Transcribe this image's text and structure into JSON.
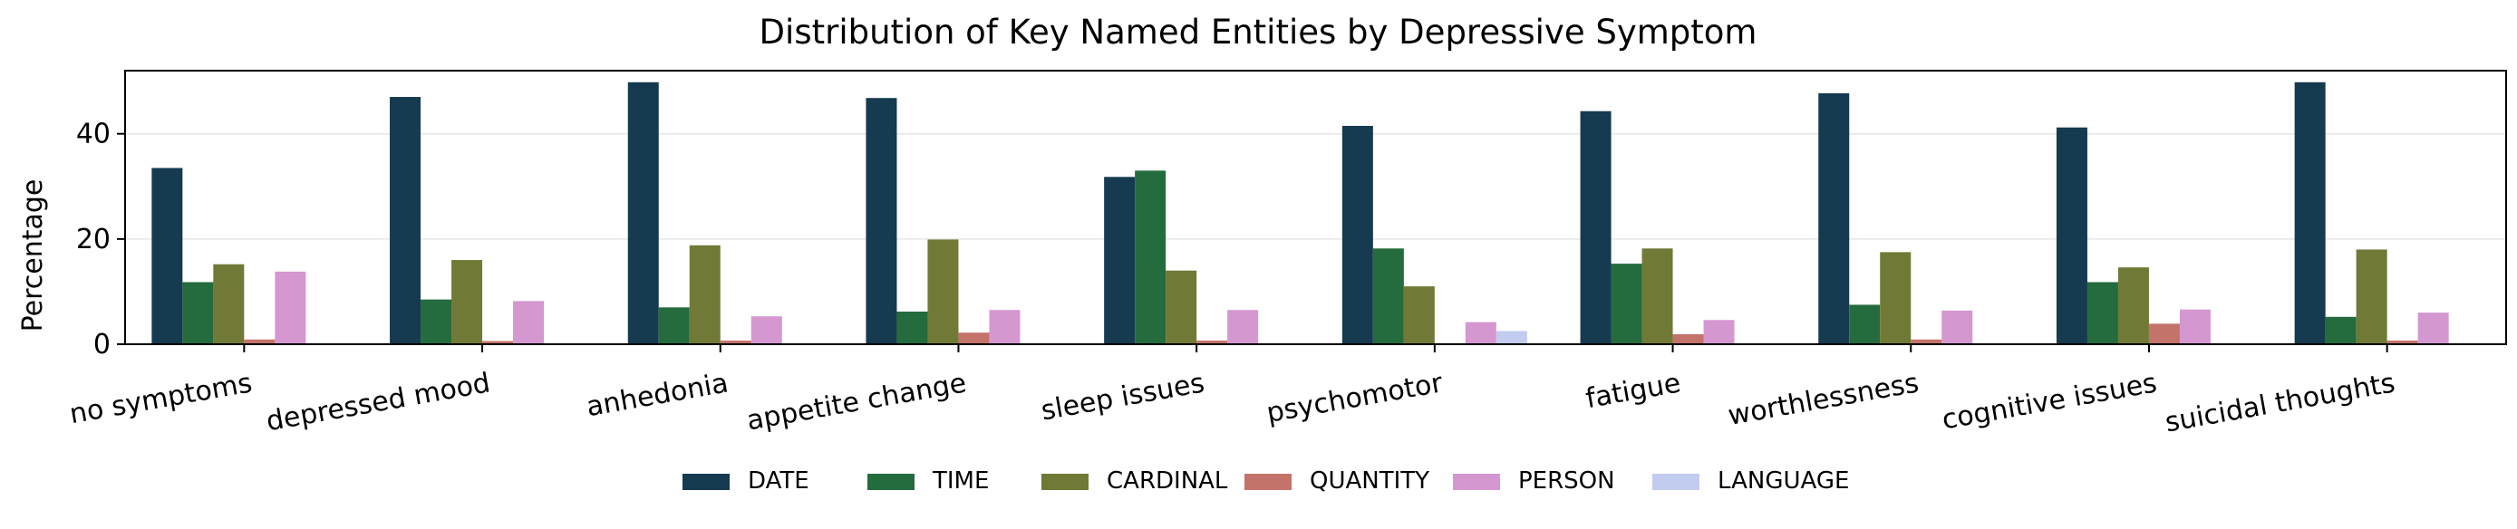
{
  "chart_data": {
    "type": "bar",
    "title": "Distribution of Key Named Entities by Depressive Symptom",
    "xlabel": "",
    "ylabel": "Percentage",
    "ylim": [
      0,
      52
    ],
    "yticks": [
      0,
      20,
      40
    ],
    "grid": true,
    "legend_position": "bottom-center",
    "categories": [
      "no symptoms",
      "depressed mood",
      "anhedonia",
      "appetite change",
      "sleep issues",
      "psychomotor",
      "fatigue",
      "worthlessness",
      "cognitive issues",
      "suicidal thoughts"
    ],
    "series": [
      {
        "name": "DATE",
        "color": "#163a4f",
        "values": [
          33.5,
          47.0,
          49.8,
          46.8,
          31.8,
          41.5,
          44.3,
          47.7,
          41.2,
          49.8
        ]
      },
      {
        "name": "TIME",
        "color": "#246b3d",
        "values": [
          11.8,
          8.5,
          7.0,
          6.2,
          33.0,
          18.2,
          15.3,
          7.5,
          11.8,
          5.2
        ]
      },
      {
        "name": "CARDINAL",
        "color": "#717936",
        "values": [
          15.2,
          16.0,
          18.8,
          19.9,
          14.0,
          11.0,
          18.2,
          17.5,
          14.6,
          18.0
        ]
      },
      {
        "name": "QUANTITY",
        "color": "#c4736b",
        "values": [
          0.9,
          0.6,
          0.7,
          2.2,
          0.7,
          0.2,
          1.9,
          0.9,
          3.9,
          0.7
        ]
      },
      {
        "name": "PERSON",
        "color": "#d497d0",
        "values": [
          13.8,
          8.2,
          5.3,
          6.5,
          6.5,
          4.2,
          4.6,
          6.4,
          6.6,
          6.0
        ]
      },
      {
        "name": "LANGUAGE",
        "color": "#c2ccee",
        "values": [
          0,
          0,
          0,
          0,
          0,
          2.5,
          0,
          0,
          0,
          0
        ]
      }
    ]
  }
}
